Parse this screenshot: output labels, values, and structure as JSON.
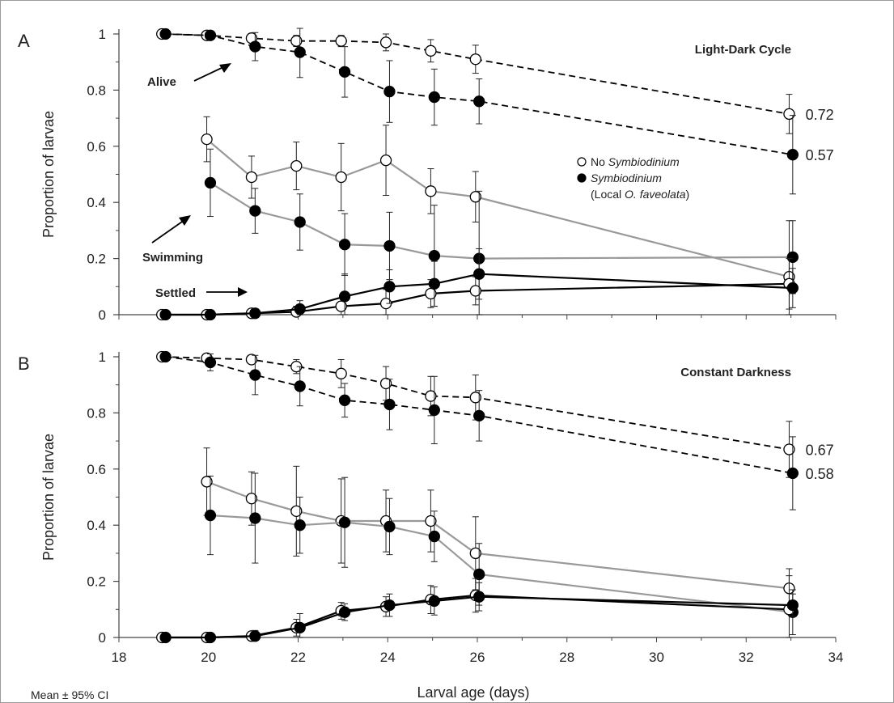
{
  "chart_data": [
    {
      "panel_label": "A",
      "title": "Light-Dark Cycle",
      "type": "line",
      "ylabel": "Proportion of larvae",
      "xlim": [
        18,
        34
      ],
      "ylim": [
        0,
        1
      ],
      "yticks": [
        "0",
        "0.2",
        "0.4",
        "0.6",
        "0.8",
        "1"
      ],
      "annotations": {
        "alive": "Alive",
        "swimming": "Swimming",
        "settled": "Settled"
      },
      "end_labels": {
        "alive_open": "0.72",
        "alive_filled": "0.57"
      },
      "legend": {
        "open": "No Symbiodinium",
        "filled": "Symbiodinium",
        "filled_note": "(Local O. faveolata)"
      },
      "series": [
        {
          "status": "alive",
          "symbiont": "none",
          "marker": "open",
          "style": "dashed",
          "color": "#000000",
          "x": [
            19,
            20,
            21,
            22,
            23,
            24,
            25,
            26,
            33
          ],
          "y": [
            1.0,
            0.995,
            0.985,
            0.975,
            0.975,
            0.97,
            0.94,
            0.91,
            0.715
          ],
          "err": [
            0,
            0.01,
            0.015,
            0.02,
            0.02,
            0.03,
            0.04,
            0.05,
            0.07
          ]
        },
        {
          "status": "alive",
          "symbiont": "local",
          "marker": "filled",
          "style": "dashed",
          "color": "#000000",
          "x": [
            19,
            20,
            21,
            22,
            23,
            24,
            25,
            26,
            33
          ],
          "y": [
            1.0,
            0.995,
            0.955,
            0.935,
            0.865,
            0.795,
            0.775,
            0.76,
            0.57
          ],
          "err": [
            0,
            0.01,
            0.05,
            0.09,
            0.09,
            0.11,
            0.1,
            0.08,
            0.14
          ]
        },
        {
          "status": "swimming",
          "symbiont": "none",
          "marker": "open",
          "style": "solid",
          "color": "#999999",
          "x": [
            20,
            21,
            22,
            23,
            24,
            25,
            26,
            33
          ],
          "y": [
            0.625,
            0.49,
            0.53,
            0.49,
            0.55,
            0.44,
            0.42,
            0.135
          ],
          "err": [
            0.08,
            0.075,
            0.085,
            0.12,
            0.125,
            0.08,
            0.09,
            0.2
          ]
        },
        {
          "status": "swimming",
          "symbiont": "local",
          "marker": "filled",
          "style": "solid",
          "color": "#999999",
          "x": [
            20,
            21,
            22,
            23,
            24,
            25,
            26,
            33
          ],
          "y": [
            0.47,
            0.37,
            0.33,
            0.25,
            0.245,
            0.21,
            0.2,
            0.205
          ],
          "err": [
            0.12,
            0.08,
            0.1,
            0.11,
            0.12,
            0.18,
            0.24,
            0.13
          ]
        },
        {
          "status": "settled",
          "symbiont": "none",
          "marker": "open",
          "style": "solid",
          "color": "#000000",
          "x": [
            19,
            20,
            21,
            22,
            23,
            24,
            25,
            26,
            33
          ],
          "y": [
            0,
            0,
            0.005,
            0.01,
            0.03,
            0.04,
            0.075,
            0.085,
            0.11
          ],
          "err": [
            0,
            0,
            0.005,
            0.02,
            0.03,
            0.05,
            0.05,
            0.05,
            0.09
          ]
        },
        {
          "status": "settled",
          "symbiont": "local",
          "marker": "filled",
          "style": "solid",
          "color": "#000000",
          "x": [
            19,
            20,
            21,
            22,
            23,
            24,
            25,
            26,
            33
          ],
          "y": [
            0,
            0,
            0.005,
            0.02,
            0.065,
            0.1,
            0.11,
            0.145,
            0.095
          ],
          "err": [
            0,
            0,
            0.005,
            0.03,
            0.08,
            0.06,
            0.08,
            0.09,
            0.07
          ]
        }
      ]
    },
    {
      "panel_label": "B",
      "title": "Constant Darkness",
      "type": "line",
      "ylabel": "Proportion of larvae",
      "xlabel": "Larval age (days)",
      "xlim": [
        18,
        34
      ],
      "ylim": [
        0,
        1
      ],
      "xticks": [
        "18",
        "20",
        "22",
        "24",
        "26",
        "28",
        "30",
        "32",
        "34"
      ],
      "yticks": [
        "0",
        "0.2",
        "0.4",
        "0.6",
        "0.8",
        "1"
      ],
      "end_labels": {
        "alive_open": "0.67",
        "alive_filled": "0.58"
      },
      "series": [
        {
          "status": "alive",
          "symbiont": "none",
          "marker": "open",
          "style": "dashed",
          "color": "#000000",
          "x": [
            19,
            20,
            21,
            22,
            23,
            24,
            25,
            26,
            33
          ],
          "y": [
            1.0,
            0.995,
            0.99,
            0.965,
            0.94,
            0.905,
            0.86,
            0.855,
            0.67
          ],
          "err": [
            0,
            0.01,
            0.01,
            0.025,
            0.05,
            0.06,
            0.07,
            0.08,
            0.1
          ]
        },
        {
          "status": "alive",
          "symbiont": "local",
          "marker": "filled",
          "style": "dashed",
          "color": "#000000",
          "x": [
            19,
            20,
            21,
            22,
            23,
            24,
            25,
            26,
            33
          ],
          "y": [
            1.0,
            0.98,
            0.935,
            0.895,
            0.845,
            0.83,
            0.81,
            0.79,
            0.585
          ],
          "err": [
            0,
            0.03,
            0.07,
            0.07,
            0.06,
            0.09,
            0.12,
            0.09,
            0.13
          ]
        },
        {
          "status": "swimming",
          "symbiont": "none",
          "marker": "open",
          "style": "solid",
          "color": "#999999",
          "x": [
            20,
            21,
            22,
            23,
            24,
            25,
            26,
            33
          ],
          "y": [
            0.555,
            0.495,
            0.45,
            0.415,
            0.415,
            0.415,
            0.3,
            0.175
          ],
          "err": [
            0.12,
            0.095,
            0.16,
            0.15,
            0.11,
            0.11,
            0.13,
            0.07
          ]
        },
        {
          "status": "swimming",
          "symbiont": "local",
          "marker": "filled",
          "style": "solid",
          "color": "#999999",
          "x": [
            20,
            21,
            22,
            23,
            24,
            25,
            26,
            33
          ],
          "y": [
            0.435,
            0.425,
            0.4,
            0.41,
            0.395,
            0.36,
            0.225,
            0.09
          ],
          "err": [
            0.14,
            0.16,
            0.1,
            0.16,
            0.1,
            0.09,
            0.11,
            0.08
          ]
        },
        {
          "status": "settled",
          "symbiont": "none",
          "marker": "open",
          "style": "solid",
          "color": "#000000",
          "x": [
            19,
            20,
            21,
            22,
            23,
            24,
            25,
            26,
            33
          ],
          "y": [
            0,
            0,
            0.005,
            0.035,
            0.095,
            0.11,
            0.135,
            0.15,
            0.1
          ],
          "err": [
            0,
            0,
            0.01,
            0.03,
            0.03,
            0.035,
            0.05,
            0.06,
            0.12
          ]
        },
        {
          "status": "settled",
          "symbiont": "local",
          "marker": "filled",
          "style": "solid",
          "color": "#000000",
          "x": [
            19,
            20,
            21,
            22,
            23,
            24,
            25,
            26,
            33
          ],
          "y": [
            0,
            0,
            0.005,
            0.035,
            0.09,
            0.115,
            0.13,
            0.145,
            0.115
          ],
          "err": [
            0,
            0,
            0.02,
            0.05,
            0.03,
            0.04,
            0.05,
            0.05,
            0.04
          ]
        }
      ]
    }
  ],
  "footnote": "Mean ± 95% CI"
}
